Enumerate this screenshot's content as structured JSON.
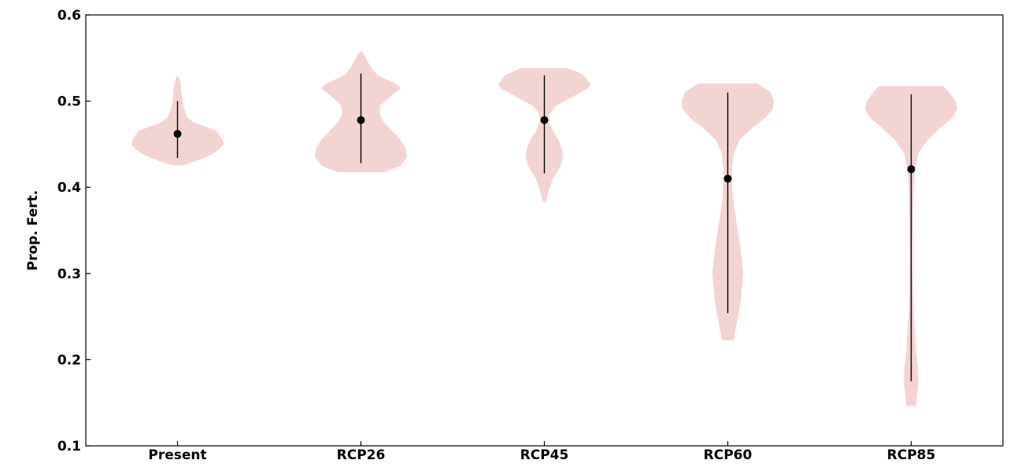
{
  "chart_data": {
    "type": "violin",
    "title": "",
    "xlabel": "",
    "ylabel": "Prop. Fert.",
    "ylim": [
      0.1,
      0.6
    ],
    "yticks": [
      "0.1",
      "0.2",
      "0.3",
      "0.4",
      "0.5",
      "0.6"
    ],
    "grid": false,
    "colors": {
      "violin_fill": "#f4d4d3",
      "marker": "#000000",
      "whisker": "#000000",
      "axes": "#000000"
    },
    "categories": [
      "Present",
      "RCP26",
      "RCP45",
      "RCP60",
      "RCP85"
    ],
    "series": [
      {
        "category": "Present",
        "median": 0.462,
        "whisker_low": 0.434,
        "whisker_high": 0.5,
        "density": [
          [
            0.426,
            0.1
          ],
          [
            0.43,
            0.35
          ],
          [
            0.435,
            0.6
          ],
          [
            0.44,
            0.8
          ],
          [
            0.445,
            0.92
          ],
          [
            0.45,
            1.0
          ],
          [
            0.455,
            0.98
          ],
          [
            0.46,
            0.92
          ],
          [
            0.465,
            0.85
          ],
          [
            0.47,
            0.6
          ],
          [
            0.475,
            0.35
          ],
          [
            0.48,
            0.22
          ],
          [
            0.49,
            0.14
          ],
          [
            0.5,
            0.1
          ],
          [
            0.51,
            0.08
          ],
          [
            0.52,
            0.06
          ],
          [
            0.528,
            0.02
          ]
        ]
      },
      {
        "category": "RCP26",
        "median": 0.478,
        "whisker_low": 0.428,
        "whisker_high": 0.532,
        "density": [
          [
            0.418,
            0.5
          ],
          [
            0.425,
            0.85
          ],
          [
            0.435,
            1.0
          ],
          [
            0.445,
            0.97
          ],
          [
            0.455,
            0.86
          ],
          [
            0.465,
            0.68
          ],
          [
            0.475,
            0.5
          ],
          [
            0.485,
            0.4
          ],
          [
            0.495,
            0.42
          ],
          [
            0.505,
            0.62
          ],
          [
            0.515,
            0.86
          ],
          [
            0.52,
            0.75
          ],
          [
            0.53,
            0.35
          ],
          [
            0.54,
            0.2
          ],
          [
            0.55,
            0.1
          ],
          [
            0.557,
            0.02
          ]
        ]
      },
      {
        "category": "RCP45",
        "median": 0.478,
        "whisker_low": 0.416,
        "whisker_high": 0.53,
        "density": [
          [
            0.383,
            0.02
          ],
          [
            0.395,
            0.08
          ],
          [
            0.41,
            0.18
          ],
          [
            0.425,
            0.35
          ],
          [
            0.435,
            0.4
          ],
          [
            0.445,
            0.38
          ],
          [
            0.455,
            0.3
          ],
          [
            0.465,
            0.18
          ],
          [
            0.475,
            0.1
          ],
          [
            0.485,
            0.1
          ],
          [
            0.495,
            0.25
          ],
          [
            0.505,
            0.6
          ],
          [
            0.515,
            0.95
          ],
          [
            0.52,
            1.0
          ],
          [
            0.53,
            0.85
          ],
          [
            0.538,
            0.5
          ]
        ]
      },
      {
        "category": "RCP60",
        "median": 0.41,
        "whisker_low": 0.254,
        "whisker_high": 0.51,
        "density": [
          [
            0.223,
            0.12
          ],
          [
            0.235,
            0.16
          ],
          [
            0.25,
            0.22
          ],
          [
            0.27,
            0.28
          ],
          [
            0.3,
            0.33
          ],
          [
            0.33,
            0.27
          ],
          [
            0.36,
            0.18
          ],
          [
            0.39,
            0.1
          ],
          [
            0.42,
            0.08
          ],
          [
            0.44,
            0.13
          ],
          [
            0.455,
            0.25
          ],
          [
            0.47,
            0.55
          ],
          [
            0.48,
            0.8
          ],
          [
            0.49,
            0.97
          ],
          [
            0.5,
            1.0
          ],
          [
            0.51,
            0.93
          ],
          [
            0.52,
            0.65
          ]
        ]
      },
      {
        "category": "RCP85",
        "median": 0.421,
        "whisker_low": 0.175,
        "whisker_high": 0.508,
        "density": [
          [
            0.147,
            0.1
          ],
          [
            0.16,
            0.12
          ],
          [
            0.175,
            0.15
          ],
          [
            0.19,
            0.14
          ],
          [
            0.21,
            0.1
          ],
          [
            0.24,
            0.06
          ],
          [
            0.28,
            0.03
          ],
          [
            0.32,
            0.025
          ],
          [
            0.36,
            0.03
          ],
          [
            0.39,
            0.04
          ],
          [
            0.42,
            0.07
          ],
          [
            0.44,
            0.15
          ],
          [
            0.455,
            0.35
          ],
          [
            0.47,
            0.65
          ],
          [
            0.48,
            0.88
          ],
          [
            0.49,
            1.0
          ],
          [
            0.5,
            0.96
          ],
          [
            0.51,
            0.82
          ],
          [
            0.517,
            0.7
          ]
        ]
      }
    ]
  }
}
